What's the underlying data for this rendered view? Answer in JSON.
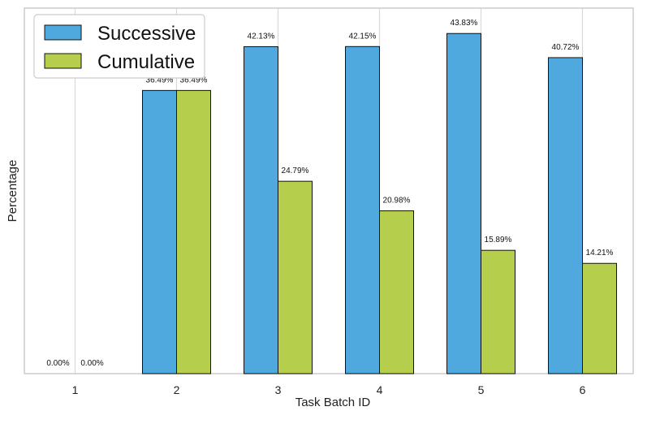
{
  "chart_data": {
    "type": "bar",
    "title": "",
    "xlabel": "Task Batch ID",
    "ylabel": "Percentage",
    "categories": [
      "1",
      "2",
      "3",
      "4",
      "5",
      "6"
    ],
    "series": [
      {
        "name": "Successive",
        "color": "#4FA8DE",
        "values": [
          0.0,
          36.49,
          42.13,
          42.15,
          43.83,
          40.72
        ],
        "labels": [
          "0.00%",
          "36.49%",
          "42.13%",
          "42.15%",
          "43.83%",
          "40.72%"
        ]
      },
      {
        "name": "Cumulative",
        "color": "#B5CE4B",
        "values": [
          0.0,
          36.49,
          24.79,
          20.98,
          15.89,
          14.21
        ],
        "labels": [
          "0.00%",
          "36.49%",
          "24.79%",
          "20.98%",
          "15.89%",
          "14.21%"
        ]
      }
    ],
    "ylim": [
      0,
      47.1
    ],
    "y_ticks_shown": false,
    "grid": "vertical",
    "legend": "top-left"
  }
}
